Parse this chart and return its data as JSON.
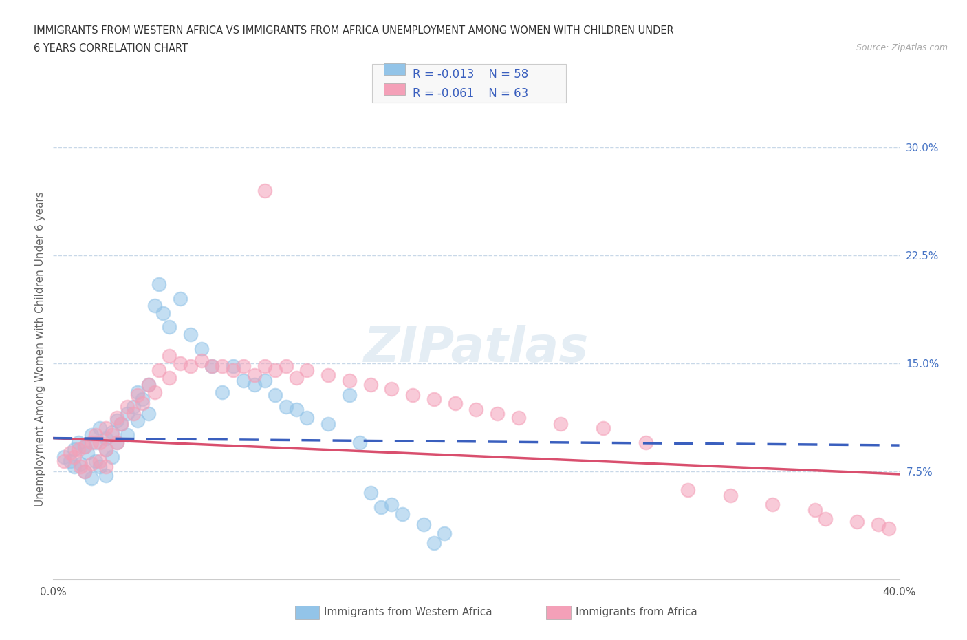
{
  "title_line1": "IMMIGRANTS FROM WESTERN AFRICA VS IMMIGRANTS FROM AFRICA UNEMPLOYMENT AMONG WOMEN WITH CHILDREN UNDER",
  "title_line2": "6 YEARS CORRELATION CHART",
  "source": "Source: ZipAtlas.com",
  "ylabel": "Unemployment Among Women with Children Under 6 years",
  "xlim": [
    0.0,
    0.4
  ],
  "ylim": [
    0.0,
    0.32
  ],
  "legend_labels": [
    "Immigrants from Western Africa",
    "Immigrants from Africa"
  ],
  "r_values": [
    -0.013,
    -0.061
  ],
  "n_values": [
    58,
    63
  ],
  "blue_color": "#93c4e8",
  "pink_color": "#f4a0b8",
  "blue_line_color": "#3a5fbe",
  "pink_line_color": "#d94f6e",
  "blue_scatter": [
    [
      0.005,
      0.085
    ],
    [
      0.008,
      0.082
    ],
    [
      0.01,
      0.09
    ],
    [
      0.01,
      0.078
    ],
    [
      0.012,
      0.095
    ],
    [
      0.013,
      0.08
    ],
    [
      0.015,
      0.092
    ],
    [
      0.015,
      0.075
    ],
    [
      0.016,
      0.088
    ],
    [
      0.018,
      0.1
    ],
    [
      0.018,
      0.07
    ],
    [
      0.02,
      0.095
    ],
    [
      0.02,
      0.082
    ],
    [
      0.022,
      0.105
    ],
    [
      0.022,
      0.078
    ],
    [
      0.025,
      0.098
    ],
    [
      0.025,
      0.09
    ],
    [
      0.025,
      0.072
    ],
    [
      0.028,
      0.102
    ],
    [
      0.028,
      0.085
    ],
    [
      0.03,
      0.11
    ],
    [
      0.03,
      0.095
    ],
    [
      0.032,
      0.108
    ],
    [
      0.035,
      0.115
    ],
    [
      0.035,
      0.1
    ],
    [
      0.038,
      0.12
    ],
    [
      0.04,
      0.13
    ],
    [
      0.04,
      0.11
    ],
    [
      0.042,
      0.125
    ],
    [
      0.045,
      0.135
    ],
    [
      0.045,
      0.115
    ],
    [
      0.048,
      0.19
    ],
    [
      0.05,
      0.205
    ],
    [
      0.052,
      0.185
    ],
    [
      0.055,
      0.175
    ],
    [
      0.06,
      0.195
    ],
    [
      0.065,
      0.17
    ],
    [
      0.07,
      0.16
    ],
    [
      0.075,
      0.148
    ],
    [
      0.08,
      0.13
    ],
    [
      0.085,
      0.148
    ],
    [
      0.09,
      0.138
    ],
    [
      0.095,
      0.135
    ],
    [
      0.1,
      0.138
    ],
    [
      0.105,
      0.128
    ],
    [
      0.11,
      0.12
    ],
    [
      0.115,
      0.118
    ],
    [
      0.12,
      0.112
    ],
    [
      0.13,
      0.108
    ],
    [
      0.14,
      0.128
    ],
    [
      0.145,
      0.095
    ],
    [
      0.15,
      0.06
    ],
    [
      0.155,
      0.05
    ],
    [
      0.16,
      0.052
    ],
    [
      0.165,
      0.045
    ],
    [
      0.175,
      0.038
    ],
    [
      0.18,
      0.025
    ],
    [
      0.185,
      0.032
    ]
  ],
  "pink_scatter": [
    [
      0.005,
      0.082
    ],
    [
      0.008,
      0.088
    ],
    [
      0.01,
      0.085
    ],
    [
      0.012,
      0.09
    ],
    [
      0.013,
      0.078
    ],
    [
      0.015,
      0.092
    ],
    [
      0.015,
      0.075
    ],
    [
      0.018,
      0.095
    ],
    [
      0.018,
      0.08
    ],
    [
      0.02,
      0.1
    ],
    [
      0.022,
      0.095
    ],
    [
      0.022,
      0.082
    ],
    [
      0.025,
      0.105
    ],
    [
      0.025,
      0.09
    ],
    [
      0.025,
      0.078
    ],
    [
      0.028,
      0.1
    ],
    [
      0.03,
      0.112
    ],
    [
      0.03,
      0.095
    ],
    [
      0.032,
      0.108
    ],
    [
      0.035,
      0.12
    ],
    [
      0.038,
      0.115
    ],
    [
      0.04,
      0.128
    ],
    [
      0.042,
      0.122
    ],
    [
      0.045,
      0.135
    ],
    [
      0.048,
      0.13
    ],
    [
      0.05,
      0.145
    ],
    [
      0.055,
      0.155
    ],
    [
      0.055,
      0.14
    ],
    [
      0.06,
      0.15
    ],
    [
      0.065,
      0.148
    ],
    [
      0.07,
      0.152
    ],
    [
      0.075,
      0.148
    ],
    [
      0.08,
      0.148
    ],
    [
      0.085,
      0.145
    ],
    [
      0.09,
      0.148
    ],
    [
      0.095,
      0.142
    ],
    [
      0.1,
      0.148
    ],
    [
      0.1,
      0.27
    ],
    [
      0.105,
      0.145
    ],
    [
      0.11,
      0.148
    ],
    [
      0.115,
      0.14
    ],
    [
      0.12,
      0.145
    ],
    [
      0.13,
      0.142
    ],
    [
      0.14,
      0.138
    ],
    [
      0.15,
      0.135
    ],
    [
      0.16,
      0.132
    ],
    [
      0.17,
      0.128
    ],
    [
      0.18,
      0.125
    ],
    [
      0.19,
      0.122
    ],
    [
      0.2,
      0.118
    ],
    [
      0.21,
      0.115
    ],
    [
      0.22,
      0.112
    ],
    [
      0.24,
      0.108
    ],
    [
      0.26,
      0.105
    ],
    [
      0.28,
      0.095
    ],
    [
      0.3,
      0.062
    ],
    [
      0.32,
      0.058
    ],
    [
      0.34,
      0.052
    ],
    [
      0.36,
      0.048
    ],
    [
      0.365,
      0.042
    ],
    [
      0.38,
      0.04
    ],
    [
      0.39,
      0.038
    ],
    [
      0.395,
      0.035
    ]
  ],
  "blue_line": {
    "x0": 0.0,
    "y0": 0.098,
    "x1": 0.4,
    "y1": 0.093
  },
  "pink_line": {
    "x0": 0.0,
    "y0": 0.098,
    "x1": 0.4,
    "y1": 0.073
  },
  "background_color": "#ffffff",
  "grid_color": "#c8d8e8",
  "watermark": "ZIPatlas"
}
